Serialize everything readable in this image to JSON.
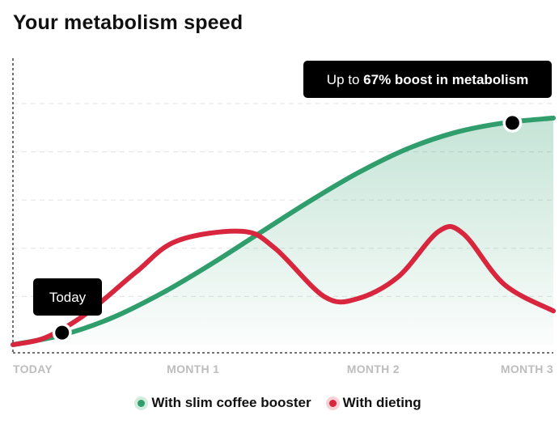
{
  "title": "Your metabolism speed",
  "chart_data": {
    "type": "line",
    "title": "Your metabolism speed",
    "categories": [
      "TODAY",
      "MONTH 1",
      "MONTH 2",
      "MONTH 3"
    ],
    "x_range": [
      0,
      3.3
    ],
    "ylim": [
      0,
      100
    ],
    "grid": true,
    "legend_position": "bottom-center",
    "series": [
      {
        "name": "With slim coffee booster",
        "color": "#2f9e6c",
        "x": [
          0,
          0.3,
          0.6,
          0.9,
          1.2,
          1.5,
          1.8,
          2.1,
          2.4,
          2.7,
          3.0,
          3.3
        ],
        "values": [
          0,
          4,
          11,
          21,
          33,
          46,
          59,
          71,
          81,
          88,
          92,
          94
        ]
      },
      {
        "name": "With dieting",
        "color": "#d7263d",
        "x": [
          0,
          0.2,
          0.45,
          0.75,
          1.0,
          1.4,
          1.6,
          1.9,
          2.1,
          2.35,
          2.6,
          2.75,
          3.0,
          3.3
        ],
        "values": [
          0,
          3,
          13,
          30,
          43,
          47,
          40,
          20,
          19,
          28,
          47,
          46,
          25,
          14
        ]
      }
    ],
    "annotations": [
      {
        "text": "Today",
        "series": "With dieting",
        "x": 0.3,
        "y": 5
      },
      {
        "text_prefix": "Up to ",
        "text_bold": "67% boost in metabolism",
        "series": "With slim coffee booster",
        "x": 3.05,
        "y": 92
      }
    ]
  },
  "legend": [
    {
      "label": "With slim coffee booster",
      "color": "#2f9e6c"
    },
    {
      "label": "With dieting",
      "color": "#d7263d"
    }
  ]
}
